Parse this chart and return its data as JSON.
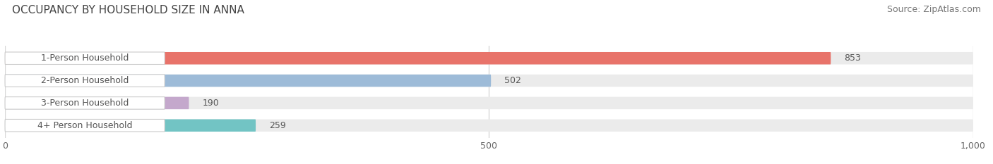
{
  "title": "OCCUPANCY BY HOUSEHOLD SIZE IN ANNA",
  "source": "Source: ZipAtlas.com",
  "categories": [
    "1-Person Household",
    "2-Person Household",
    "3-Person Household",
    "4+ Person Household"
  ],
  "values": [
    853,
    502,
    190,
    259
  ],
  "colors": [
    "#E8736A",
    "#9DBBD8",
    "#C4A8CC",
    "#72C4C4"
  ],
  "xlim_max": 1000,
  "xticks": [
    0,
    500,
    1000
  ],
  "xtick_labels": [
    "0",
    "500",
    "1,000"
  ],
  "background_color": "#ffffff",
  "plot_bg_color": "#ffffff",
  "grid_color": "#d8d8d8",
  "bar_bg_color": "#ebebeb",
  "label_bg_color": "#ffffff",
  "label_text_color": "#555555",
  "value_text_color": "#555555",
  "title_fontsize": 11,
  "source_fontsize": 9,
  "label_fontsize": 9,
  "value_fontsize": 9
}
